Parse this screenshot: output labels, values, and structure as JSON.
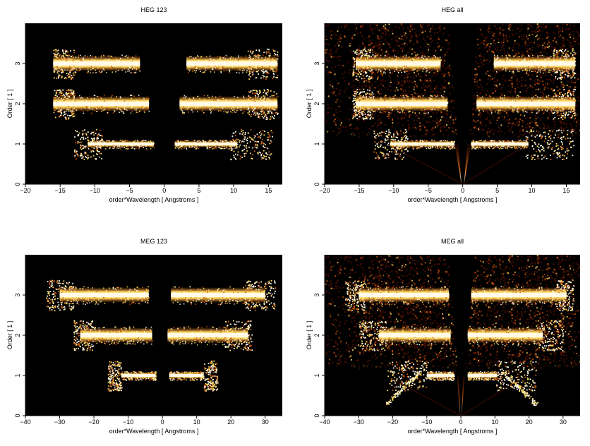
{
  "colors": {
    "background": "#000000",
    "low": "#5a1204",
    "mid": "#c85a10",
    "high": "#ffd860",
    "peak": "#fffbe8"
  },
  "chart_data": [
    {
      "type": "heatmap",
      "title": "HEG 123",
      "xlabel": "order*Wavelength [ Angstroms ]",
      "ylabel": "Order [ 1 ]",
      "xlim": [
        -20,
        17
      ],
      "ylim": [
        0,
        4
      ],
      "xticks": [
        -20,
        -15,
        -10,
        -5,
        0,
        5,
        10,
        15
      ],
      "yticks": [
        0,
        1,
        2,
        3
      ],
      "bands": [
        {
          "order": 1,
          "segments": [
            [
              -11,
              -1.5
            ],
            [
              1.5,
              10.5
            ]
          ],
          "halo": [
            [
              -13,
              -9
            ],
            [
              9.5,
              15.5
            ]
          ]
        },
        {
          "order": 2,
          "segments": [
            [
              -16,
              -2.2
            ],
            [
              2.2,
              16.3
            ]
          ],
          "halo": [
            [
              -16,
              -13
            ],
            [
              12,
              16.3
            ]
          ]
        },
        {
          "order": 3,
          "segments": [
            [
              -16,
              -3.5
            ],
            [
              3.2,
              16.3
            ]
          ],
          "halo": [
            [
              -16,
              -13
            ],
            [
              12,
              16.3
            ]
          ]
        }
      ],
      "extras": []
    },
    {
      "type": "heatmap",
      "title": "HEG all",
      "xlabel": "order*Wavelength [ Angstroms ]",
      "ylabel": "Order [ 1 ]",
      "xlim": [
        -20,
        17
      ],
      "ylim": [
        0,
        4
      ],
      "xticks": [
        -20,
        -15,
        -10,
        -5,
        0,
        5,
        10,
        15
      ],
      "yticks": [
        0,
        1,
        2,
        3
      ],
      "bands": [
        {
          "order": 1,
          "segments": [
            [
              -10.5,
              -1.2
            ],
            [
              1.2,
              9.5
            ]
          ],
          "halo": [
            [
              -13,
              -8
            ],
            [
              9,
              16
            ]
          ]
        },
        {
          "order": 2,
          "segments": [
            [
              -15.5,
              -2.2
            ],
            [
              2,
              16.3
            ]
          ],
          "halo": [
            [
              -16,
              -13
            ],
            [
              13,
              16.3
            ]
          ]
        },
        {
          "order": 3,
          "segments": [
            [
              -15.5,
              -3.2
            ],
            [
              4.5,
              16.3
            ]
          ],
          "halo": [
            [
              -16,
              -13
            ],
            [
              13,
              16.3
            ]
          ]
        }
      ],
      "extras": [
        "background-haze",
        "zero-order-plume",
        "wedge-gap"
      ]
    },
    {
      "type": "heatmap",
      "title": "MEG 123",
      "xlabel": "order*Wavelength [ Angstroms ]",
      "ylabel": "Order [ 1 ]",
      "xlim": [
        -40,
        35
      ],
      "ylim": [
        0,
        4
      ],
      "xticks": [
        -40,
        -30,
        -20,
        -10,
        0,
        10,
        20,
        30
      ],
      "yticks": [
        0,
        1,
        2,
        3
      ],
      "bands": [
        {
          "order": 1,
          "segments": [
            [
              -12,
              -2
            ],
            [
              2,
              12
            ]
          ],
          "halo": [
            [
              -16,
              -12
            ],
            [
              12,
              16
            ]
          ]
        },
        {
          "order": 2,
          "segments": [
            [
              -24,
              -3
            ],
            [
              1.5,
              25
            ]
          ],
          "halo": [
            [
              -26,
              -20
            ],
            [
              18,
              26
            ]
          ]
        },
        {
          "order": 3,
          "segments": [
            [
              -30,
              -4
            ],
            [
              2.5,
              30
            ]
          ],
          "halo": [
            [
              -34,
              -26
            ],
            [
              24,
              33
            ]
          ]
        }
      ],
      "extras": []
    },
    {
      "type": "heatmap",
      "title": "MEG all",
      "xlabel": "order*Wavelength [ Angstroms ]",
      "ylabel": "Order [ 1 ]",
      "xlim": [
        -40,
        35
      ],
      "ylim": [
        0,
        4
      ],
      "xticks": [
        -40,
        -30,
        -20,
        -10,
        0,
        10,
        20,
        30
      ],
      "yticks": [
        0,
        1,
        2,
        3
      ],
      "bands": [
        {
          "order": 1,
          "segments": [
            [
              -10,
              -2
            ],
            [
              2,
              10.5
            ]
          ],
          "halo": [
            [
              -22,
              -10
            ],
            [
              10,
              22
            ]
          ]
        },
        {
          "order": 2,
          "segments": [
            [
              -24,
              -3
            ],
            [
              2,
              24
            ]
          ],
          "halo": [
            [
              -30,
              -22
            ],
            [
              22,
              30
            ]
          ]
        },
        {
          "order": 3,
          "segments": [
            [
              -30,
              -3.5
            ],
            [
              3,
              31
            ]
          ],
          "halo": [
            [
              -34,
              -28
            ],
            [
              28,
              33
            ]
          ]
        }
      ],
      "extras": [
        "background-haze",
        "zero-order-plume",
        "wedge-gap",
        "diagonal-streaks"
      ]
    }
  ]
}
